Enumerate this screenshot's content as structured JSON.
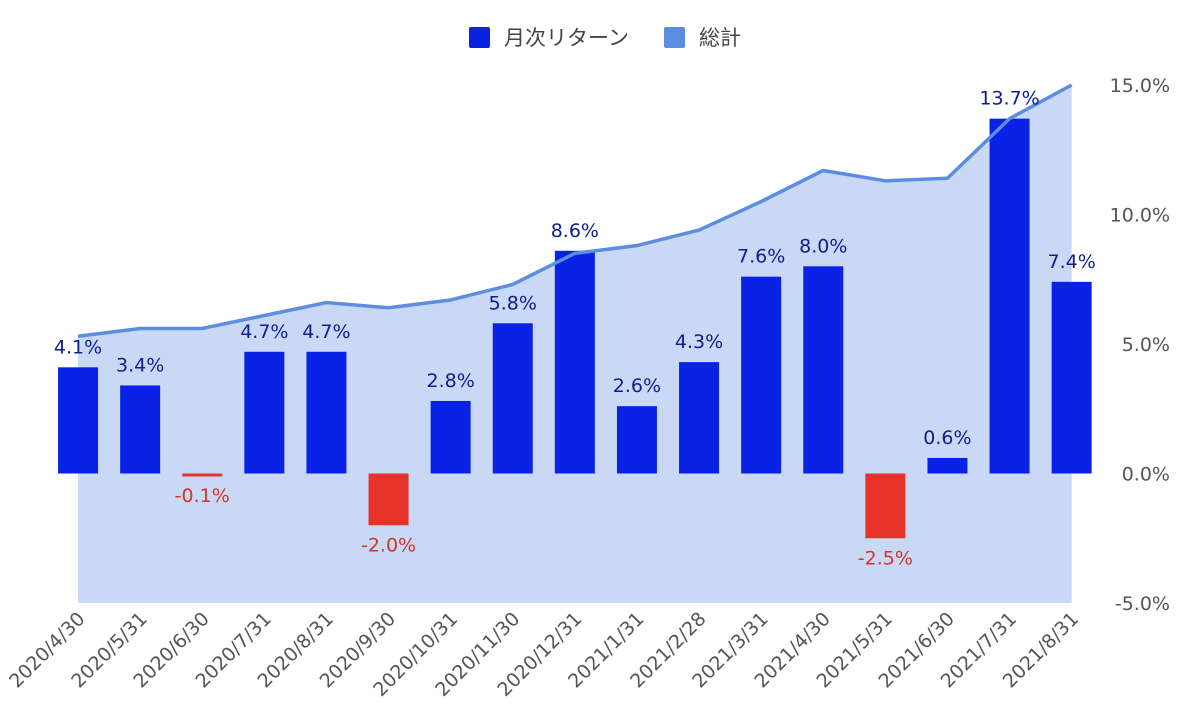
{
  "chart_data": {
    "type": "bar",
    "categories": [
      "2020/4/30",
      "2020/5/31",
      "2020/6/30",
      "2020/7/31",
      "2020/8/31",
      "2020/9/30",
      "2020/10/31",
      "2020/11/30",
      "2020/12/31",
      "2021/1/31",
      "2021/2/28",
      "2021/3/31",
      "2021/4/30",
      "2021/5/31",
      "2021/6/30",
      "2021/7/31",
      "2021/8/31"
    ],
    "series": [
      {
        "name": "月次リターン",
        "type": "bar",
        "values": [
          4.1,
          3.4,
          -0.1,
          4.7,
          4.7,
          -2.0,
          2.8,
          5.8,
          8.6,
          2.6,
          4.3,
          7.6,
          8.0,
          -2.5,
          0.6,
          13.7,
          7.4
        ],
        "labels": [
          "4.1%",
          "3.4%",
          "-0.1%",
          "4.7%",
          "4.7%",
          "-2.0%",
          "2.8%",
          "5.8%",
          "8.6%",
          "2.6%",
          "4.3%",
          "7.6%",
          "8.0%",
          "-2.5%",
          "0.6%",
          "13.7%",
          "7.4%"
        ]
      },
      {
        "name": "総計",
        "type": "area",
        "values": [
          5.3,
          5.6,
          5.6,
          6.1,
          6.6,
          6.4,
          6.7,
          7.3,
          8.5,
          8.8,
          9.4,
          10.5,
          11.7,
          11.3,
          11.4,
          13.7,
          15.0
        ]
      }
    ],
    "y_axis": {
      "position": "right",
      "range": [
        -5.0,
        15.0
      ],
      "ticks": [
        15.0,
        10.0,
        5.0,
        0.0,
        -5.0
      ],
      "tick_labels": [
        "15.0%",
        "10.0%",
        "5.0%",
        "0.0%",
        "-5.0%"
      ]
    },
    "legend_position": "top-center",
    "colors": {
      "bar_positive": "#0a22e6",
      "bar_negative": "#e8332a",
      "label_positive": "#0d1f8c",
      "label_negative": "#d3342a",
      "line": "#5b8de0",
      "area": "#c9d8f5",
      "legend_bar": "#0a22e6",
      "legend_total": "#5b8de0"
    }
  }
}
